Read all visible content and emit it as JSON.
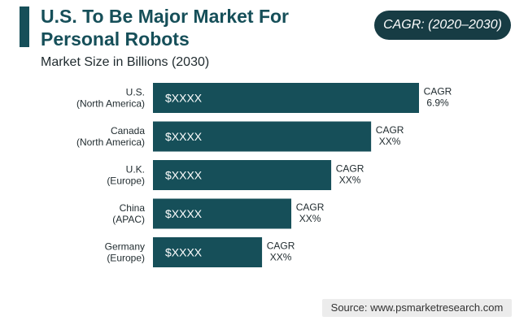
{
  "header": {
    "title_line1": "U.S. To Be Major Market For",
    "title_line2": "Personal Robots",
    "subtitle": "Market Size in Billions (2030)",
    "cagr_badge": "CAGR: (2020–2030)"
  },
  "source": "Source: www.psmarketresearch.com",
  "colors": {
    "bar": "#164f59",
    "badge": "#173c44",
    "title": "#164f59"
  },
  "chart_data": {
    "type": "bar",
    "orientation": "horizontal",
    "title": "U.S. To Be Major Market For Personal Robots",
    "subtitle": "Market Size in Billions (2030)",
    "categories": [
      [
        "U.S.",
        "(North America)"
      ],
      [
        "Canada",
        "(North America)"
      ],
      [
        "U.K.",
        "(Europe)"
      ],
      [
        "China",
        "(APAC)"
      ],
      [
        "Germany",
        "(Europe)"
      ]
    ],
    "values": [
      100,
      82,
      67,
      52,
      41
    ],
    "value_labels": [
      "$XXXX",
      "$XXXX",
      "$XXXX",
      "$XXXX",
      "$XXXX"
    ],
    "cagr_labels": [
      [
        "CAGR",
        "6.9%"
      ],
      [
        "CAGR",
        "XX%"
      ],
      [
        "CAGR",
        "XX%"
      ],
      [
        "CAGR",
        "XX%"
      ],
      [
        "CAGR",
        "XX%"
      ]
    ],
    "xlim": [
      0,
      100
    ],
    "grid": false,
    "legend": "none"
  }
}
